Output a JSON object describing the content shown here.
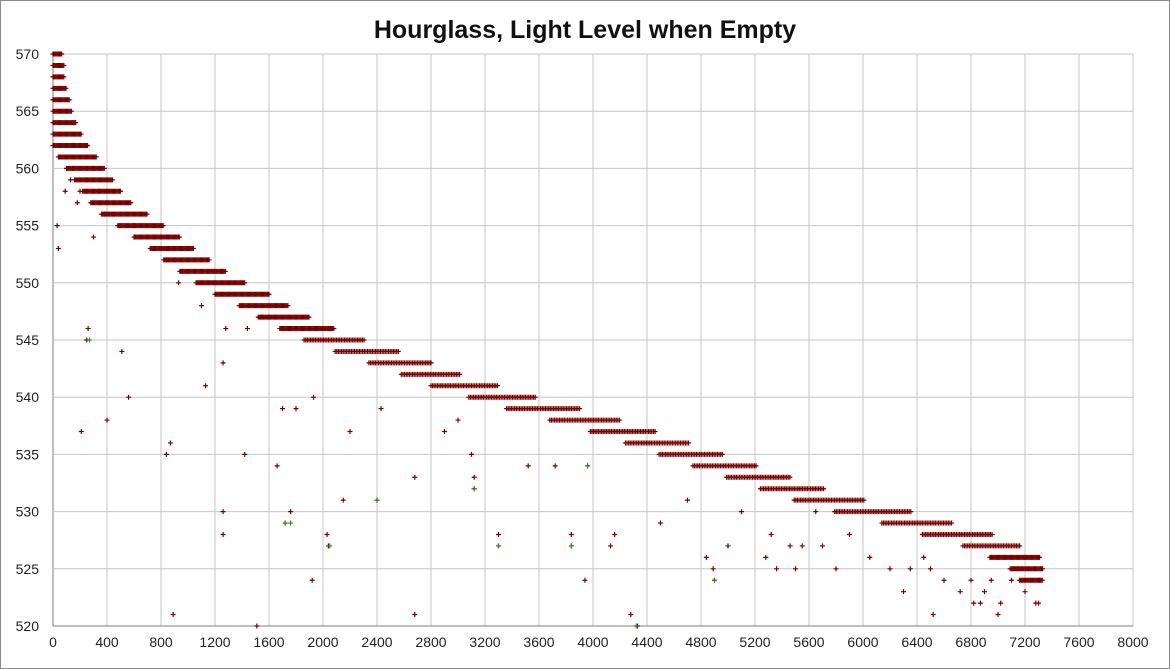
{
  "chart_data": {
    "type": "scatter",
    "title": "Hourglass,  Light Level when Empty",
    "xlabel": "",
    "ylabel": "",
    "xlim": [
      0,
      8000
    ],
    "ylim": [
      520,
      570
    ],
    "x_ticks": [
      0,
      400,
      800,
      1200,
      1600,
      2000,
      2400,
      2800,
      3200,
      3600,
      4000,
      4400,
      4800,
      5200,
      5600,
      6000,
      6400,
      6800,
      7200,
      7600,
      8000
    ],
    "y_ticks": [
      520,
      525,
      530,
      535,
      540,
      545,
      550,
      555,
      560,
      565,
      570
    ],
    "grid": true,
    "legend": "none",
    "marker": "+",
    "series": [
      {
        "color": "#7a0000",
        "main_band": [
          [
            0,
            570
          ],
          [
            10,
            569
          ],
          [
            20,
            568
          ],
          [
            25,
            567
          ],
          [
            40,
            566
          ],
          [
            60,
            565
          ],
          [
            80,
            564
          ],
          [
            110,
            563
          ],
          [
            150,
            562
          ],
          [
            200,
            561
          ],
          [
            260,
            560
          ],
          [
            320,
            559
          ],
          [
            380,
            558
          ],
          [
            440,
            557
          ],
          [
            520,
            556
          ],
          [
            640,
            555
          ],
          [
            760,
            554
          ],
          [
            880,
            553
          ],
          [
            980,
            552
          ],
          [
            1100,
            551
          ],
          [
            1220,
            550
          ],
          [
            1360,
            549
          ],
          [
            1540,
            548
          ],
          [
            1680,
            547
          ],
          [
            1840,
            546
          ],
          [
            2020,
            545
          ],
          [
            2250,
            544
          ],
          [
            2500,
            543
          ],
          [
            2740,
            542
          ],
          [
            2960,
            541
          ],
          [
            3240,
            540
          ],
          [
            3520,
            539
          ],
          [
            3840,
            538
          ],
          [
            4140,
            537
          ],
          [
            4400,
            536
          ],
          [
            4650,
            535
          ],
          [
            4900,
            534
          ],
          [
            5150,
            533
          ],
          [
            5400,
            532
          ],
          [
            5650,
            531
          ],
          [
            5950,
            530
          ],
          [
            6300,
            529
          ],
          [
            6600,
            528
          ],
          [
            6900,
            527
          ],
          [
            7100,
            526
          ],
          [
            7250,
            525
          ],
          [
            7320,
            524
          ]
        ],
        "points": [
          [
            30,
            555
          ],
          [
            40,
            553
          ],
          [
            90,
            558
          ],
          [
            130,
            559
          ],
          [
            150,
            560
          ],
          [
            180,
            557
          ],
          [
            200,
            558
          ],
          [
            210,
            537
          ],
          [
            250,
            545
          ],
          [
            260,
            546
          ],
          [
            300,
            554
          ],
          [
            340,
            558
          ],
          [
            380,
            556
          ],
          [
            400,
            538
          ],
          [
            510,
            544
          ],
          [
            560,
            540
          ],
          [
            600,
            555
          ],
          [
            840,
            535
          ],
          [
            870,
            536
          ],
          [
            890,
            521
          ],
          [
            930,
            550
          ],
          [
            1100,
            548
          ],
          [
            1130,
            541
          ],
          [
            1260,
            530
          ],
          [
            1260,
            528
          ],
          [
            1260,
            543
          ],
          [
            1280,
            546
          ],
          [
            1420,
            535
          ],
          [
            1440,
            546
          ],
          [
            1510,
            520
          ],
          [
            1660,
            534
          ],
          [
            1700,
            539
          ],
          [
            1720,
            529
          ],
          [
            1760,
            530
          ],
          [
            1800,
            539
          ],
          [
            1920,
            524
          ],
          [
            1930,
            540
          ],
          [
            2030,
            528
          ],
          [
            2040,
            527
          ],
          [
            2150,
            531
          ],
          [
            2200,
            537
          ],
          [
            2400,
            531
          ],
          [
            2430,
            539
          ],
          [
            2680,
            533
          ],
          [
            2680,
            521
          ],
          [
            2800,
            543
          ],
          [
            2900,
            537
          ],
          [
            3000,
            538
          ],
          [
            3100,
            535
          ],
          [
            3120,
            533
          ],
          [
            3120,
            532
          ],
          [
            3300,
            527
          ],
          [
            3300,
            528
          ],
          [
            3520,
            534
          ],
          [
            3720,
            534
          ],
          [
            3840,
            528
          ],
          [
            3840,
            527
          ],
          [
            3940,
            524
          ],
          [
            3960,
            534
          ],
          [
            4130,
            527
          ],
          [
            4160,
            528
          ],
          [
            4280,
            521
          ],
          [
            4330,
            520
          ],
          [
            4500,
            529
          ],
          [
            4700,
            531
          ],
          [
            4840,
            526
          ],
          [
            4890,
            525
          ],
          [
            4900,
            524
          ],
          [
            5000,
            527
          ],
          [
            5100,
            530
          ],
          [
            5280,
            526
          ],
          [
            5320,
            528
          ],
          [
            5360,
            525
          ],
          [
            5460,
            527
          ],
          [
            5500,
            525
          ],
          [
            5550,
            527
          ],
          [
            5650,
            530
          ],
          [
            5700,
            527
          ],
          [
            5800,
            525
          ],
          [
            5900,
            528
          ],
          [
            6050,
            526
          ],
          [
            6200,
            525
          ],
          [
            6300,
            523
          ],
          [
            6350,
            525
          ],
          [
            6450,
            526
          ],
          [
            6500,
            525
          ],
          [
            6520,
            521
          ],
          [
            6600,
            524
          ],
          [
            6720,
            523
          ],
          [
            6800,
            524
          ],
          [
            6820,
            522
          ],
          [
            6870,
            522
          ],
          [
            6900,
            523
          ],
          [
            6950,
            524
          ],
          [
            7000,
            521
          ],
          [
            7020,
            522
          ],
          [
            7100,
            524
          ],
          [
            7150,
            525
          ],
          [
            7200,
            523
          ],
          [
            7280,
            522
          ],
          [
            7300,
            522
          ],
          [
            7310,
            524
          ]
        ]
      },
      {
        "color": "#2e8b22",
        "points": [
          [
            270,
            545
          ],
          [
            1720,
            529
          ],
          [
            1760,
            529
          ],
          [
            2050,
            527
          ],
          [
            2400,
            531
          ],
          [
            3120,
            532
          ],
          [
            3300,
            527
          ],
          [
            3840,
            527
          ],
          [
            3960,
            534
          ],
          [
            4320,
            520
          ],
          [
            4900,
            524
          ]
        ]
      }
    ]
  }
}
